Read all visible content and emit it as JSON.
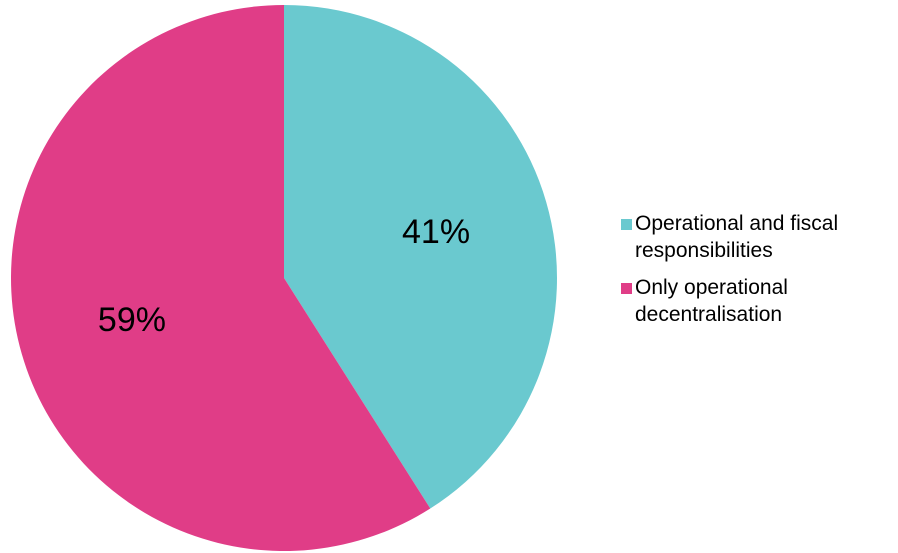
{
  "chart_data": {
    "type": "pie",
    "title": "",
    "legend_position": "right",
    "slices": [
      {
        "label": "Operational and fiscal responsibilities",
        "value": 41,
        "display": "41%",
        "color": "#6ac9cf"
      },
      {
        "label": "Only operational decentralisation",
        "value": 59,
        "display": "59%",
        "color": "#e03d87"
      }
    ]
  }
}
